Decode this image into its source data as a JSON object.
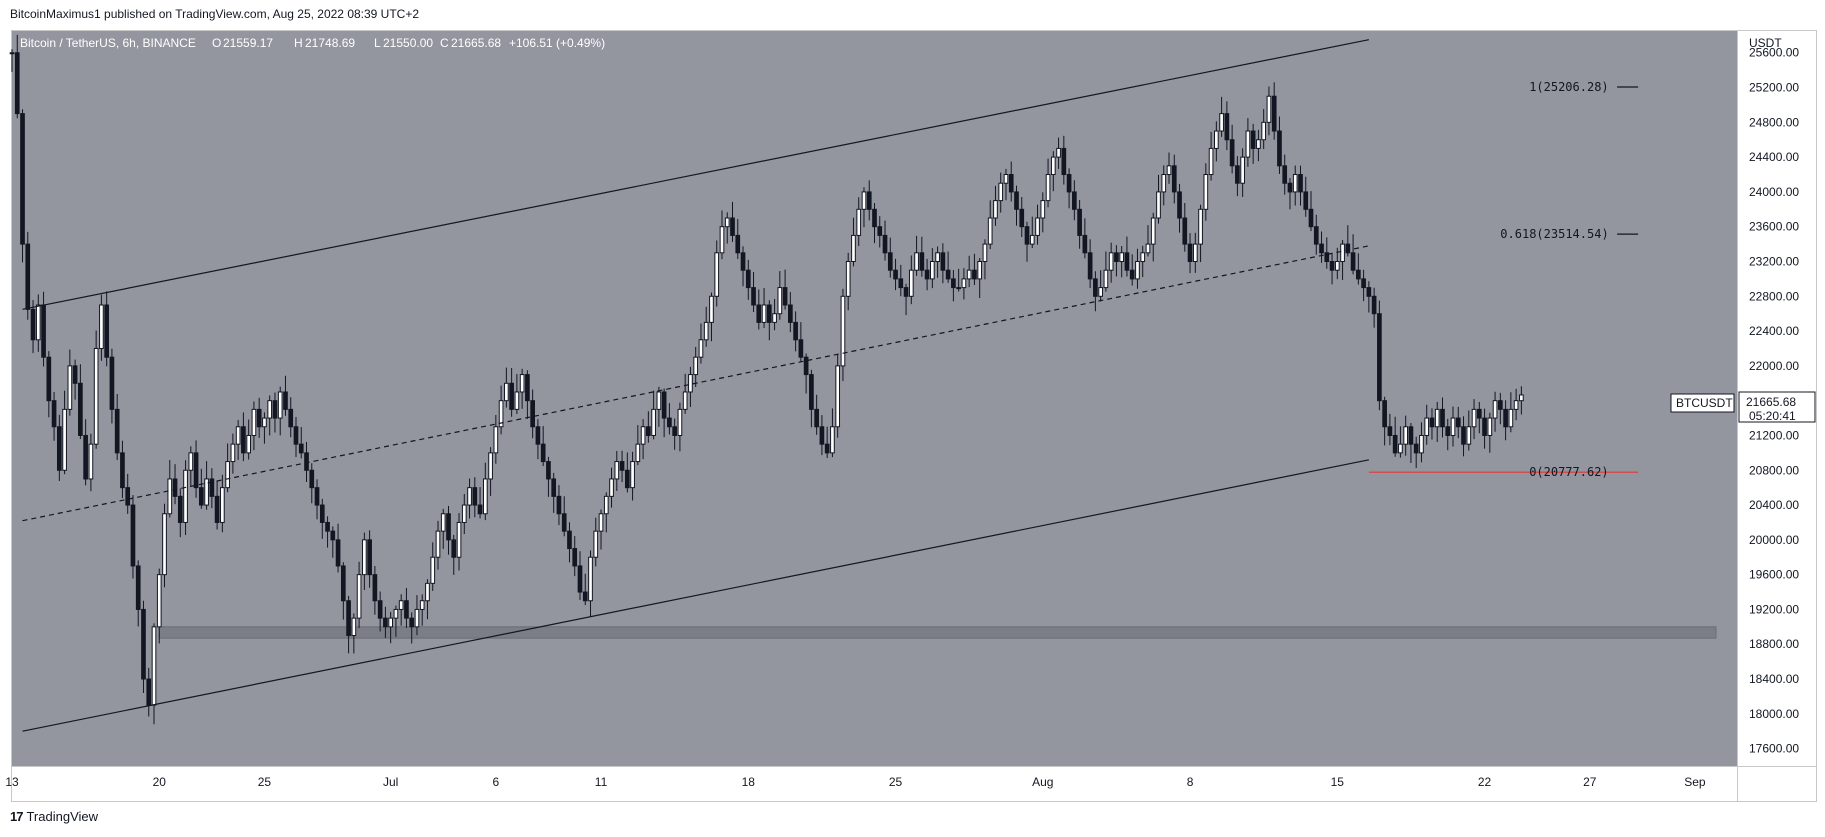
{
  "header": {
    "caption": "BitcoinMaximus1 published on TradingView.com, Aug 25, 2022 08:39 UTC+2"
  },
  "legend": {
    "symbol": "Bitcoin / TetherUS, 6h, BINANCE",
    "o_label": "O",
    "o_value": "21559.17",
    "h_label": "H",
    "h_value": "21748.69",
    "l_label": "L",
    "l_value": "21550.00",
    "c_label": "C",
    "c_value": "21665.68",
    "change": "+106.51 (+0.49%)"
  },
  "price_axis": {
    "unit": "USDT",
    "symbol_badge": "BTCUSDT",
    "last_price": "21665.68",
    "countdown": "05:20:41",
    "badge_color": "#131722"
  },
  "footer": {
    "logo_mark": "17",
    "logo_text": "TradingView"
  },
  "colors": {
    "plot_bg": "#93959f",
    "candle": "#131722",
    "channel": "#131722",
    "support_zone": "#7b7e87",
    "fib_zero_line": "#e53935"
  },
  "chart_data": {
    "type": "candlestick",
    "ylim": [
      17400,
      25850
    ],
    "y_ticks": [
      17600,
      18000,
      18400,
      18800,
      19200,
      19600,
      20000,
      20400,
      20800,
      21200,
      21600,
      22000,
      22400,
      22800,
      23200,
      23600,
      24000,
      24400,
      24800,
      25200,
      25600
    ],
    "x_ticks": [
      {
        "label": "13",
        "day": 13
      },
      {
        "label": "20",
        "day": 20
      },
      {
        "label": "25",
        "day": 25
      },
      {
        "label": "Jul",
        "day": 31
      },
      {
        "label": "6",
        "day": 36
      },
      {
        "label": "11",
        "day": 41
      },
      {
        "label": "18",
        "day": 48
      },
      {
        "label": "25",
        "day": 55
      },
      {
        "label": "Aug",
        "day": 62
      },
      {
        "label": "8",
        "day": 69
      },
      {
        "label": "15",
        "day": 76
      },
      {
        "label": "22",
        "day": 83
      },
      {
        "label": "27",
        "day": 88
      },
      {
        "label": "Sep",
        "day": 93
      }
    ],
    "xlim_days": [
      13.0,
      95.0
    ],
    "closes": [
      [
        13.0,
        25600
      ],
      [
        13.25,
        24900
      ],
      [
        13.5,
        23400
      ],
      [
        13.75,
        22650
      ],
      [
        14.0,
        22300
      ],
      [
        14.25,
        22700
      ],
      [
        14.5,
        22100
      ],
      [
        14.75,
        21600
      ],
      [
        15.0,
        21300
      ],
      [
        15.25,
        20800
      ],
      [
        15.5,
        21500
      ],
      [
        15.75,
        22000
      ],
      [
        16.0,
        21800
      ],
      [
        16.25,
        21200
      ],
      [
        16.5,
        20700
      ],
      [
        16.75,
        21100
      ],
      [
        17.0,
        22200
      ],
      [
        17.25,
        22700
      ],
      [
        17.5,
        22100
      ],
      [
        17.75,
        21500
      ],
      [
        18.0,
        21000
      ],
      [
        18.25,
        20600
      ],
      [
        18.5,
        20400
      ],
      [
        18.75,
        19700
      ],
      [
        19.0,
        19200
      ],
      [
        19.25,
        18400
      ],
      [
        19.5,
        18100
      ],
      [
        19.75,
        19000
      ],
      [
        20.0,
        19600
      ],
      [
        20.25,
        20300
      ],
      [
        20.5,
        20700
      ],
      [
        20.75,
        20500
      ],
      [
        21.0,
        20200
      ],
      [
        21.25,
        20800
      ],
      [
        21.5,
        21000
      ],
      [
        21.75,
        20600
      ],
      [
        22.0,
        20400
      ],
      [
        22.25,
        20700
      ],
      [
        22.5,
        20500
      ],
      [
        22.75,
        20200
      ],
      [
        23.0,
        20600
      ],
      [
        23.25,
        20900
      ],
      [
        23.5,
        21100
      ],
      [
        23.75,
        21300
      ],
      [
        24.0,
        21000
      ],
      [
        24.25,
        21200
      ],
      [
        24.5,
        21500
      ],
      [
        24.75,
        21300
      ],
      [
        25.0,
        21400
      ],
      [
        25.25,
        21600
      ],
      [
        25.5,
        21400
      ],
      [
        25.75,
        21700
      ],
      [
        26.0,
        21500
      ],
      [
        26.25,
        21300
      ],
      [
        26.5,
        21100
      ],
      [
        26.75,
        21000
      ],
      [
        27.0,
        20800
      ],
      [
        27.25,
        20600
      ],
      [
        27.5,
        20400
      ],
      [
        27.75,
        20200
      ],
      [
        28.0,
        20100
      ],
      [
        28.25,
        20000
      ],
      [
        28.5,
        19700
      ],
      [
        28.75,
        19300
      ],
      [
        29.0,
        18900
      ],
      [
        29.25,
        19100
      ],
      [
        29.5,
        19600
      ],
      [
        29.75,
        20000
      ],
      [
        30.0,
        19600
      ],
      [
        30.25,
        19300
      ],
      [
        30.5,
        19100
      ],
      [
        30.75,
        19000
      ],
      [
        31.0,
        19100
      ],
      [
        31.25,
        19200
      ],
      [
        31.5,
        19300
      ],
      [
        31.75,
        19100
      ],
      [
        32.0,
        19000
      ],
      [
        32.25,
        19200
      ],
      [
        32.5,
        19300
      ],
      [
        32.75,
        19500
      ],
      [
        33.0,
        19800
      ],
      [
        33.25,
        20100
      ],
      [
        33.5,
        20300
      ],
      [
        33.75,
        20000
      ],
      [
        34.0,
        19800
      ],
      [
        34.25,
        20200
      ],
      [
        34.5,
        20400
      ],
      [
        34.75,
        20600
      ],
      [
        35.0,
        20400
      ],
      [
        35.25,
        20300
      ],
      [
        35.5,
        20700
      ],
      [
        35.75,
        21000
      ],
      [
        36.0,
        21300
      ],
      [
        36.25,
        21600
      ],
      [
        36.5,
        21800
      ],
      [
        36.75,
        21500
      ],
      [
        37.0,
        21700
      ],
      [
        37.25,
        21900
      ],
      [
        37.5,
        21600
      ],
      [
        37.75,
        21300
      ],
      [
        38.0,
        21100
      ],
      [
        38.25,
        20900
      ],
      [
        38.5,
        20700
      ],
      [
        38.75,
        20500
      ],
      [
        39.0,
        20300
      ],
      [
        39.25,
        20100
      ],
      [
        39.5,
        19900
      ],
      [
        39.75,
        19700
      ],
      [
        40.0,
        19400
      ],
      [
        40.25,
        19300
      ],
      [
        40.5,
        19800
      ],
      [
        40.75,
        20100
      ],
      [
        41.0,
        20300
      ],
      [
        41.25,
        20500
      ],
      [
        41.5,
        20700
      ],
      [
        41.75,
        20900
      ],
      [
        42.0,
        20800
      ],
      [
        42.25,
        20600
      ],
      [
        42.5,
        20900
      ],
      [
        42.75,
        21100
      ],
      [
        43.0,
        21300
      ],
      [
        43.25,
        21200
      ],
      [
        43.5,
        21500
      ],
      [
        43.75,
        21700
      ],
      [
        44.0,
        21400
      ],
      [
        44.25,
        21300
      ],
      [
        44.5,
        21200
      ],
      [
        44.75,
        21500
      ],
      [
        45.0,
        21700
      ],
      [
        45.25,
        21900
      ],
      [
        45.5,
        22100
      ],
      [
        45.75,
        22300
      ],
      [
        46.0,
        22500
      ],
      [
        46.25,
        22800
      ],
      [
        46.5,
        23300
      ],
      [
        46.75,
        23600
      ],
      [
        47.0,
        23700
      ],
      [
        47.25,
        23500
      ],
      [
        47.5,
        23300
      ],
      [
        47.75,
        23100
      ],
      [
        48.0,
        22900
      ],
      [
        48.25,
        22700
      ],
      [
        48.5,
        22500
      ],
      [
        48.75,
        22700
      ],
      [
        49.0,
        22500
      ],
      [
        49.25,
        22600
      ],
      [
        49.5,
        22900
      ],
      [
        49.75,
        22700
      ],
      [
        50.0,
        22500
      ],
      [
        50.25,
        22300
      ],
      [
        50.5,
        22100
      ],
      [
        50.75,
        21900
      ],
      [
        51.0,
        21500
      ],
      [
        51.25,
        21300
      ],
      [
        51.5,
        21100
      ],
      [
        51.75,
        21000
      ],
      [
        52.0,
        21300
      ],
      [
        52.25,
        22000
      ],
      [
        52.5,
        22800
      ],
      [
        52.75,
        23200
      ],
      [
        53.0,
        23500
      ],
      [
        53.25,
        23800
      ],
      [
        53.5,
        24000
      ],
      [
        53.75,
        23800
      ],
      [
        54.0,
        23600
      ],
      [
        54.25,
        23500
      ],
      [
        54.5,
        23300
      ],
      [
        54.75,
        23100
      ],
      [
        55.0,
        23000
      ],
      [
        55.25,
        22900
      ],
      [
        55.5,
        22800
      ],
      [
        55.75,
        23100
      ],
      [
        56.0,
        23300
      ],
      [
        56.25,
        23100
      ],
      [
        56.5,
        23000
      ],
      [
        56.75,
        23200
      ],
      [
        57.0,
        23300
      ],
      [
        57.25,
        23100
      ],
      [
        57.5,
        23000
      ],
      [
        57.75,
        22900
      ],
      [
        58.0,
        22900
      ],
      [
        58.25,
        23000
      ],
      [
        58.5,
        23100
      ],
      [
        58.75,
        23000
      ],
      [
        59.0,
        23200
      ],
      [
        59.25,
        23400
      ],
      [
        59.5,
        23700
      ],
      [
        59.75,
        23900
      ],
      [
        60.0,
        24100
      ],
      [
        60.25,
        24200
      ],
      [
        60.5,
        24000
      ],
      [
        60.75,
        23800
      ],
      [
        61.0,
        23600
      ],
      [
        61.25,
        23400
      ],
      [
        61.5,
        23500
      ],
      [
        61.75,
        23700
      ],
      [
        62.0,
        23900
      ],
      [
        62.25,
        24200
      ],
      [
        62.5,
        24400
      ],
      [
        62.75,
        24500
      ],
      [
        63.0,
        24200
      ],
      [
        63.25,
        24000
      ],
      [
        63.5,
        23800
      ],
      [
        63.75,
        23500
      ],
      [
        64.0,
        23300
      ],
      [
        64.25,
        23000
      ],
      [
        64.5,
        22800
      ],
      [
        64.75,
        22900
      ],
      [
        65.0,
        23100
      ],
      [
        65.25,
        23300
      ],
      [
        65.5,
        23200
      ],
      [
        65.75,
        23300
      ],
      [
        66.0,
        23100
      ],
      [
        66.25,
        23000
      ],
      [
        66.5,
        23200
      ],
      [
        66.75,
        23300
      ],
      [
        67.0,
        23400
      ],
      [
        67.25,
        23700
      ],
      [
        67.5,
        24000
      ],
      [
        67.75,
        24200
      ],
      [
        68.0,
        24300
      ],
      [
        68.25,
        24000
      ],
      [
        68.5,
        23700
      ],
      [
        68.75,
        23400
      ],
      [
        69.0,
        23200
      ],
      [
        69.25,
        23400
      ],
      [
        69.5,
        23800
      ],
      [
        69.75,
        24200
      ],
      [
        70.0,
        24500
      ],
      [
        70.25,
        24700
      ],
      [
        70.5,
        24900
      ],
      [
        70.75,
        24600
      ],
      [
        71.0,
        24300
      ],
      [
        71.25,
        24100
      ],
      [
        71.5,
        24400
      ],
      [
        71.75,
        24700
      ],
      [
        72.0,
        24500
      ],
      [
        72.25,
        24600
      ],
      [
        72.5,
        24800
      ],
      [
        72.75,
        25100
      ],
      [
        73.0,
        24700
      ],
      [
        73.25,
        24300
      ],
      [
        73.5,
        24100
      ],
      [
        73.75,
        24000
      ],
      [
        74.0,
        24200
      ],
      [
        74.25,
        24000
      ],
      [
        74.5,
        23800
      ],
      [
        74.75,
        23600
      ],
      [
        75.0,
        23400
      ],
      [
        75.25,
        23300
      ],
      [
        75.5,
        23200
      ],
      [
        75.75,
        23100
      ],
      [
        76.0,
        23200
      ],
      [
        76.25,
        23400
      ],
      [
        76.5,
        23300
      ],
      [
        76.75,
        23100
      ],
      [
        77.0,
        23000
      ],
      [
        77.25,
        22900
      ],
      [
        77.5,
        22800
      ],
      [
        77.75,
        22600
      ],
      [
        78.0,
        21600
      ],
      [
        78.25,
        21300
      ],
      [
        78.5,
        21200
      ],
      [
        78.75,
        21000
      ],
      [
        79.0,
        21100
      ],
      [
        79.25,
        21300
      ],
      [
        79.5,
        21100
      ],
      [
        79.75,
        21000
      ],
      [
        80.0,
        21200
      ],
      [
        80.25,
        21400
      ],
      [
        80.5,
        21300
      ],
      [
        80.75,
        21500
      ],
      [
        81.0,
        21300
      ],
      [
        81.25,
        21200
      ],
      [
        81.5,
        21400
      ],
      [
        81.75,
        21300
      ],
      [
        82.0,
        21100
      ],
      [
        82.25,
        21300
      ],
      [
        82.5,
        21500
      ],
      [
        82.75,
        21400
      ],
      [
        83.0,
        21200
      ],
      [
        83.25,
        21400
      ],
      [
        83.5,
        21600
      ],
      [
        83.75,
        21500
      ],
      [
        84.0,
        21300
      ],
      [
        84.25,
        21500
      ],
      [
        84.5,
        21600
      ],
      [
        84.75,
        21665.68
      ]
    ],
    "channel_upper": [
      [
        13.5,
        22650
      ],
      [
        77.5,
        25750
      ]
    ],
    "channel_mid": [
      [
        13.5,
        20220
      ],
      [
        77.5,
        23380
      ]
    ],
    "channel_lower": [
      [
        13.5,
        17800
      ],
      [
        77.5,
        20920
      ]
    ],
    "support_zone": {
      "from": 18870,
      "to": 19000,
      "x_from_day": 20.0,
      "x_to_day": 94.0
    },
    "fib_levels": [
      {
        "label": "1(25206.28)",
        "value": 25206.28
      },
      {
        "label": "0.618(23514.54)",
        "value": 23514.54
      },
      {
        "label": "0(20777.62)",
        "value": 20777.62
      }
    ]
  }
}
